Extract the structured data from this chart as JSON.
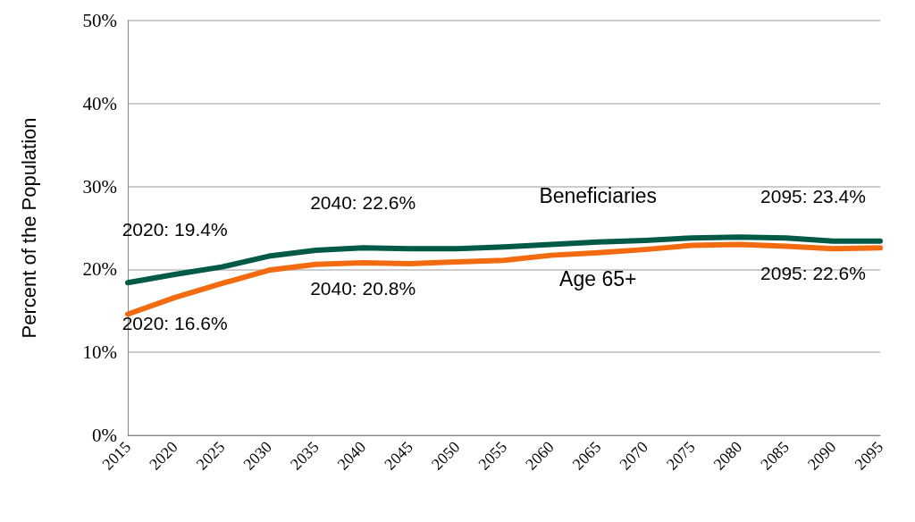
{
  "chart_data": {
    "type": "line",
    "ylabel": "Percent of the Population",
    "x": [
      2015,
      2020,
      2025,
      2030,
      2035,
      2040,
      2045,
      2050,
      2055,
      2060,
      2065,
      2070,
      2075,
      2080,
      2085,
      2090,
      2095
    ],
    "series": [
      {
        "name": "Beneficiaries",
        "color": "#005a46",
        "values": [
          18.4,
          19.4,
          20.3,
          21.6,
          22.3,
          22.6,
          22.5,
          22.5,
          22.7,
          23.0,
          23.3,
          23.5,
          23.8,
          23.9,
          23.8,
          23.4,
          23.4
        ]
      },
      {
        "name": "Age 65+",
        "color": "#f26b10",
        "values": [
          14.6,
          16.6,
          18.3,
          19.9,
          20.6,
          20.8,
          20.7,
          20.9,
          21.1,
          21.7,
          22.0,
          22.4,
          22.9,
          23.0,
          22.8,
          22.5,
          22.6
        ]
      }
    ],
    "annotations": [
      {
        "text": "2020: 19.4%",
        "x": 2020,
        "y": 19.4
      },
      {
        "text": "2040: 22.6%",
        "x": 2040,
        "y": 22.6
      },
      {
        "text": "2095: 23.4%",
        "x": 2095,
        "y": 23.4
      },
      {
        "text": "2020: 16.6%",
        "x": 2020,
        "y": 16.6
      },
      {
        "text": "2040: 20.8%",
        "x": 2040,
        "y": 20.8
      },
      {
        "text": "2095: 22.6%",
        "x": 2095,
        "y": 22.6
      }
    ],
    "xlim": [
      2015,
      2095
    ],
    "xticks": [
      2015,
      2020,
      2025,
      2030,
      2035,
      2040,
      2045,
      2050,
      2055,
      2060,
      2065,
      2070,
      2075,
      2080,
      2085,
      2090,
      2095
    ],
    "ylim": [
      0,
      50
    ],
    "yticks": [
      {
        "value": 0,
        "label": "0%"
      },
      {
        "value": 10,
        "label": "10%"
      },
      {
        "value": 20,
        "label": "20%"
      },
      {
        "value": 30,
        "label": "30%"
      },
      {
        "value": 40,
        "label": "40%"
      },
      {
        "value": 50,
        "label": "50%"
      }
    ],
    "grid": "y",
    "legend": false,
    "marker": "none",
    "line_style": "solid"
  }
}
